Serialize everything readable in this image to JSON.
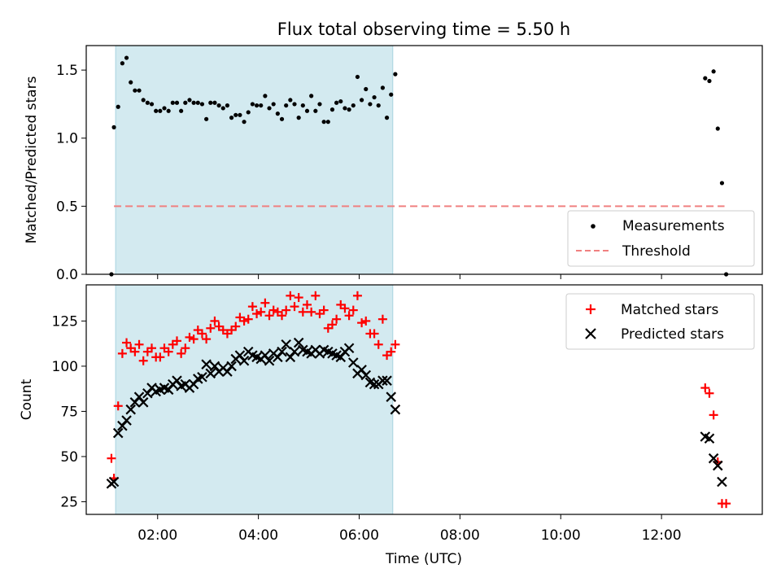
{
  "figure": {
    "title": "Flux total observing time = 5.50 h",
    "xlabel": "Time (UTC)"
  },
  "chart_data": [
    {
      "type": "scatter",
      "panel": "top",
      "ylabel": "Matched/Predicted stars",
      "xlim": [
        "00:35",
        "14:00"
      ],
      "ylim": [
        0,
        1.68
      ],
      "yticks": [
        0,
        0.5,
        1.0,
        1.5
      ],
      "ytick_labels": [
        "0.0",
        "0.5",
        "1.0",
        "1.5"
      ],
      "legend_position": "lower-right",
      "shaded_span": [
        "01:10",
        "06:40"
      ],
      "threshold": {
        "name": "Threshold",
        "value": 0.5,
        "x": [
          "01:08",
          "13:15"
        ],
        "color": "#f08080",
        "style": "dashed"
      },
      "series": [
        {
          "name": "Measurements",
          "color": "#000000",
          "marker": "dot",
          "points": [
            [
              "01:05",
              0.0
            ],
            [
              "01:08",
              1.08
            ],
            [
              "01:13",
              1.23
            ],
            [
              "01:18",
              1.55
            ],
            [
              "01:23",
              1.59
            ],
            [
              "01:28",
              1.41
            ],
            [
              "01:33",
              1.35
            ],
            [
              "01:38",
              1.35
            ],
            [
              "01:43",
              1.28
            ],
            [
              "01:48",
              1.26
            ],
            [
              "01:53",
              1.25
            ],
            [
              "01:58",
              1.2
            ],
            [
              "02:03",
              1.2
            ],
            [
              "02:08",
              1.22
            ],
            [
              "02:13",
              1.2
            ],
            [
              "02:18",
              1.26
            ],
            [
              "02:23",
              1.26
            ],
            [
              "02:28",
              1.2
            ],
            [
              "02:33",
              1.26
            ],
            [
              "02:38",
              1.28
            ],
            [
              "02:43",
              1.26
            ],
            [
              "02:48",
              1.26
            ],
            [
              "02:53",
              1.25
            ],
            [
              "02:58",
              1.14
            ],
            [
              "03:03",
              1.26
            ],
            [
              "03:08",
              1.26
            ],
            [
              "03:13",
              1.24
            ],
            [
              "03:18",
              1.22
            ],
            [
              "03:23",
              1.24
            ],
            [
              "03:28",
              1.15
            ],
            [
              "03:33",
              1.17
            ],
            [
              "03:38",
              1.17
            ],
            [
              "03:43",
              1.12
            ],
            [
              "03:48",
              1.19
            ],
            [
              "03:53",
              1.25
            ],
            [
              "03:58",
              1.24
            ],
            [
              "04:03",
              1.24
            ],
            [
              "04:08",
              1.31
            ],
            [
              "04:13",
              1.22
            ],
            [
              "04:18",
              1.25
            ],
            [
              "04:23",
              1.18
            ],
            [
              "04:28",
              1.14
            ],
            [
              "04:33",
              1.24
            ],
            [
              "04:38",
              1.28
            ],
            [
              "04:43",
              1.25
            ],
            [
              "04:48",
              1.15
            ],
            [
              "04:53",
              1.24
            ],
            [
              "04:58",
              1.2
            ],
            [
              "05:03",
              1.31
            ],
            [
              "05:08",
              1.2
            ],
            [
              "05:13",
              1.25
            ],
            [
              "05:18",
              1.12
            ],
            [
              "05:23",
              1.12
            ],
            [
              "05:28",
              1.21
            ],
            [
              "05:33",
              1.26
            ],
            [
              "05:38",
              1.27
            ],
            [
              "05:43",
              1.22
            ],
            [
              "05:48",
              1.21
            ],
            [
              "05:53",
              1.24
            ],
            [
              "05:58",
              1.45
            ],
            [
              "06:03",
              1.28
            ],
            [
              "06:08",
              1.36
            ],
            [
              "06:13",
              1.25
            ],
            [
              "06:18",
              1.3
            ],
            [
              "06:23",
              1.24
            ],
            [
              "06:28",
              1.37
            ],
            [
              "06:33",
              1.15
            ],
            [
              "06:38",
              1.32
            ],
            [
              "06:43",
              1.47
            ],
            [
              "12:52",
              1.44
            ],
            [
              "12:57",
              1.42
            ],
            [
              "13:02",
              1.49
            ],
            [
              "13:07",
              1.07
            ],
            [
              "13:12",
              0.67
            ],
            [
              "13:17",
              0.0
            ]
          ]
        }
      ]
    },
    {
      "type": "scatter",
      "panel": "bottom",
      "ylabel": "Count",
      "xlabel": "Time (UTC)",
      "xlim": [
        "00:35",
        "14:00"
      ],
      "ylim": [
        18,
        145
      ],
      "yticks": [
        25,
        50,
        75,
        100,
        125
      ],
      "xticks": [
        "02:00",
        "04:00",
        "06:00",
        "08:00",
        "10:00",
        "12:00"
      ],
      "legend_position": "upper-right",
      "shaded_span": [
        "01:10",
        "06:40"
      ],
      "series": [
        {
          "name": "Matched stars",
          "color": "#ff0000",
          "marker": "plus",
          "points": [
            [
              "01:05",
              49
            ],
            [
              "01:08",
              38
            ],
            [
              "01:13",
              78
            ],
            [
              "01:18",
              107
            ],
            [
              "01:23",
              113
            ],
            [
              "01:28",
              110
            ],
            [
              "01:33",
              108
            ],
            [
              "01:38",
              112
            ],
            [
              "01:43",
              103
            ],
            [
              "01:48",
              108
            ],
            [
              "01:53",
              110
            ],
            [
              "01:58",
              105
            ],
            [
              "02:03",
              105
            ],
            [
              "02:08",
              110
            ],
            [
              "02:13",
              108
            ],
            [
              "02:18",
              112
            ],
            [
              "02:23",
              114
            ],
            [
              "02:28",
              107
            ],
            [
              "02:33",
              110
            ],
            [
              "02:38",
              116
            ],
            [
              "02:43",
              115
            ],
            [
              "02:48",
              120
            ],
            [
              "02:53",
              118
            ],
            [
              "02:58",
              115
            ],
            [
              "03:03",
              121
            ],
            [
              "03:08",
              125
            ],
            [
              "03:13",
              122
            ],
            [
              "03:18",
              120
            ],
            [
              "03:23",
              118
            ],
            [
              "03:28",
              120
            ],
            [
              "03:33",
              122
            ],
            [
              "03:38",
              127
            ],
            [
              "03:43",
              125
            ],
            [
              "03:48",
              126
            ],
            [
              "03:53",
              133
            ],
            [
              "03:58",
              129
            ],
            [
              "04:03",
              130
            ],
            [
              "04:08",
              135
            ],
            [
              "04:13",
              128
            ],
            [
              "04:18",
              131
            ],
            [
              "04:23",
              130
            ],
            [
              "04:28",
              128
            ],
            [
              "04:33",
              131
            ],
            [
              "04:38",
              139
            ],
            [
              "04:43",
              133
            ],
            [
              "04:48",
              138
            ],
            [
              "04:53",
              130
            ],
            [
              "04:58",
              134
            ],
            [
              "05:03",
              130
            ],
            [
              "05:08",
              139
            ],
            [
              "05:13",
              129
            ],
            [
              "05:18",
              131
            ],
            [
              "05:23",
              121
            ],
            [
              "05:28",
              123
            ],
            [
              "05:33",
              126
            ],
            [
              "05:38",
              134
            ],
            [
              "05:43",
              132
            ],
            [
              "05:48",
              128
            ],
            [
              "05:53",
              131
            ],
            [
              "05:58",
              139
            ],
            [
              "06:03",
              124
            ],
            [
              "06:08",
              125
            ],
            [
              "06:13",
              118
            ],
            [
              "06:18",
              118
            ],
            [
              "06:23",
              112
            ],
            [
              "06:28",
              126
            ],
            [
              "06:33",
              106
            ],
            [
              "06:38",
              108
            ],
            [
              "06:43",
              112
            ],
            [
              "12:52",
              88
            ],
            [
              "12:57",
              85
            ],
            [
              "13:02",
              73
            ],
            [
              "13:07",
              47
            ],
            [
              "13:12",
              24
            ],
            [
              "13:17",
              24
            ]
          ]
        },
        {
          "name": "Predicted stars",
          "color": "#000000",
          "marker": "x",
          "points": [
            [
              "01:05",
              35
            ],
            [
              "01:08",
              36
            ],
            [
              "01:13",
              63
            ],
            [
              "01:18",
              67
            ],
            [
              "01:23",
              70
            ],
            [
              "01:28",
              76
            ],
            [
              "01:33",
              80
            ],
            [
              "01:38",
              83
            ],
            [
              "01:43",
              80
            ],
            [
              "01:48",
              85
            ],
            [
              "01:53",
              88
            ],
            [
              "01:58",
              86
            ],
            [
              "02:03",
              87
            ],
            [
              "02:08",
              88
            ],
            [
              "02:13",
              87
            ],
            [
              "02:18",
              90
            ],
            [
              "02:23",
              92
            ],
            [
              "02:28",
              89
            ],
            [
              "02:33",
              90
            ],
            [
              "02:38",
              88
            ],
            [
              "02:43",
              90
            ],
            [
              "02:48",
              93
            ],
            [
              "02:53",
              94
            ],
            [
              "02:58",
              101
            ],
            [
              "03:03",
              96
            ],
            [
              "03:08",
              100
            ],
            [
              "03:13",
              97
            ],
            [
              "03:18",
              99
            ],
            [
              "03:23",
              97
            ],
            [
              "03:28",
              100
            ],
            [
              "03:33",
              104
            ],
            [
              "03:38",
              106
            ],
            [
              "03:43",
              103
            ],
            [
              "03:48",
              108
            ],
            [
              "03:53",
              106
            ],
            [
              "03:58",
              105
            ],
            [
              "04:03",
              104
            ],
            [
              "04:08",
              106
            ],
            [
              "04:13",
              103
            ],
            [
              "04:18",
              107
            ],
            [
              "04:23",
              105
            ],
            [
              "04:28",
              108
            ],
            [
              "04:33",
              112
            ],
            [
              "04:38",
              105
            ],
            [
              "04:43",
              108
            ],
            [
              "04:48",
              113
            ],
            [
              "04:53",
              109
            ],
            [
              "04:58",
              108
            ],
            [
              "05:03",
              107
            ],
            [
              "05:08",
              109
            ],
            [
              "05:13",
              107
            ],
            [
              "05:18",
              109
            ],
            [
              "05:23",
              108
            ],
            [
              "05:28",
              107
            ],
            [
              "05:33",
              106
            ],
            [
              "05:38",
              105
            ],
            [
              "05:43",
              108
            ],
            [
              "05:48",
              110
            ],
            [
              "05:53",
              102
            ],
            [
              "05:58",
              96
            ],
            [
              "06:03",
              98
            ],
            [
              "06:08",
              95
            ],
            [
              "06:13",
              91
            ],
            [
              "06:18",
              90
            ],
            [
              "06:23",
              90
            ],
            [
              "06:28",
              92
            ],
            [
              "06:33",
              92
            ],
            [
              "06:38",
              83
            ],
            [
              "06:43",
              76
            ],
            [
              "12:52",
              61
            ],
            [
              "12:57",
              60
            ],
            [
              "13:02",
              49
            ],
            [
              "13:07",
              45
            ],
            [
              "13:12",
              36
            ]
          ]
        }
      ]
    }
  ],
  "colors": {
    "shaded": "#d3eaf0",
    "shaded_edge": "#a8d4e0"
  }
}
